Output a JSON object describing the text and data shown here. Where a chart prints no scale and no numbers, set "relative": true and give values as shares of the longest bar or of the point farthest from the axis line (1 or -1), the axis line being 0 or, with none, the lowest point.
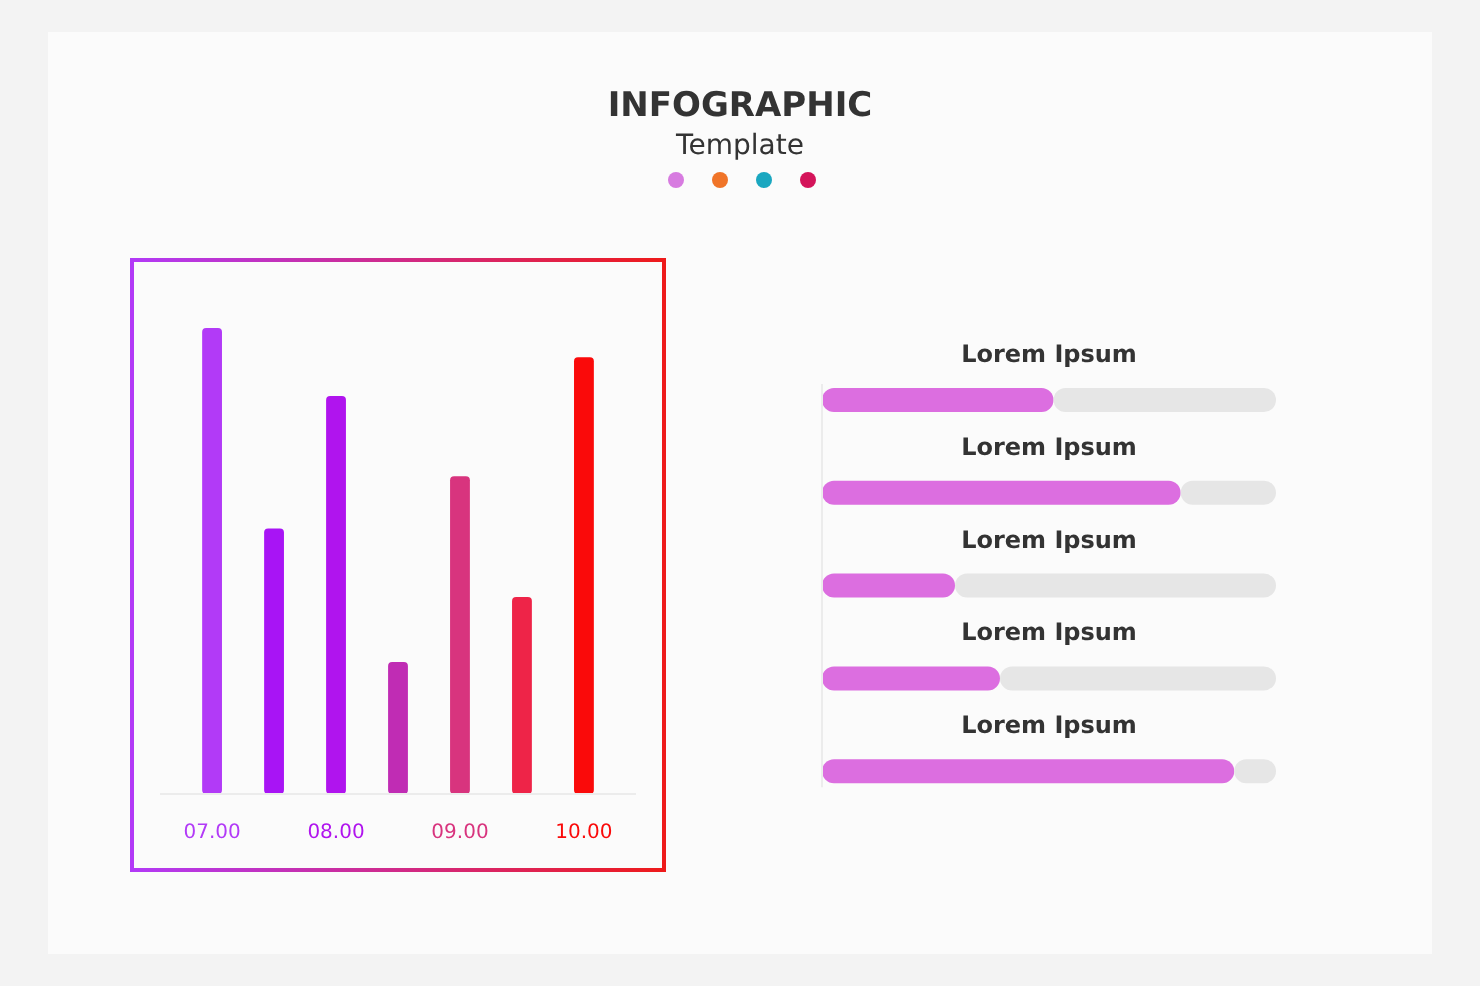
{
  "chart_data": [
    {
      "type": "other",
      "title": "INFOGRAPHIC",
      "subtitle": "Template"
    },
    {
      "type": "bar",
      "relative": true,
      "categories": [
        "07.00",
        null,
        "08.00",
        null,
        "09.00",
        null,
        "10.00"
      ],
      "values": [
        1,
        0.57,
        0.854,
        0.283,
        0.682,
        0.423,
        0.937
      ],
      "colors": [
        "#b23af7",
        "#a814f5",
        "#b014ee",
        "#c02cb4",
        "#d8347e",
        "#ee2448",
        "#fa0a0a"
      ]
    },
    {
      "type": "bar",
      "orientation": "horizontal",
      "stacked": true,
      "relative": true,
      "categories": [
        "Lorem Ipsum",
        "Lorem Ipsum",
        "Lorem Ipsum",
        "Lorem Ipsum",
        "Lorem Ipsum"
      ],
      "series": [
        {
          "color": "#dc6ee0",
          "values": [
            0.51,
            0.79,
            0.293,
            0.392,
            0.908
          ]
        },
        {
          "color": "#e6e6e6",
          "values": [
            0.49,
            0.21,
            0.707,
            0.608,
            0.092
          ]
        }
      ]
    }
  ]
}
